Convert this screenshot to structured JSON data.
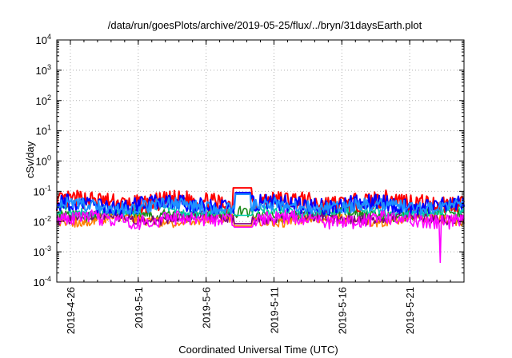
{
  "chart_data": {
    "type": "line",
    "title": "/data/run/goesPlots/archive/2019-05-25/flux/../bryn/31daysEarth.plot",
    "xlabel": "Coordinated Universal Time (UTC)",
    "ylabel": "cSv/day",
    "yscale": "log",
    "ylim": [
      0.0001,
      10000
    ],
    "y_ticks": [
      {
        "base": "10",
        "exp": "-4",
        "value": 0.0001
      },
      {
        "base": "10",
        "exp": "-3",
        "value": 0.001
      },
      {
        "base": "10",
        "exp": "-2",
        "value": 0.01
      },
      {
        "base": "10",
        "exp": "-1",
        "value": 0.1
      },
      {
        "base": "10",
        "exp": "0",
        "value": 1
      },
      {
        "base": "10",
        "exp": "1",
        "value": 10
      },
      {
        "base": "10",
        "exp": "2",
        "value": 100
      },
      {
        "base": "10",
        "exp": "3",
        "value": 1000
      },
      {
        "base": "10",
        "exp": "4",
        "value": 10000
      }
    ],
    "xlim": [
      "2019-04-25",
      "2019-05-25"
    ],
    "x_ticks": [
      "2019-4-26",
      "2019-5-1",
      "2019-5-6",
      "2019-5-11",
      "2019-5-16",
      "2019-5-21"
    ],
    "x_tick_dates": [
      "2019-04-26",
      "2019-05-01",
      "2019-05-06",
      "2019-05-11",
      "2019-05-16",
      "2019-05-21"
    ],
    "grid": true,
    "series": [
      {
        "color": "#ff0000",
        "baseline": 0.045,
        "spread": 0.55,
        "events": [
          {
            "start": "2019-05-08T00:00",
            "end": "2019-05-09T08:00",
            "value": 0.13
          }
        ]
      },
      {
        "color": "#0000ff",
        "baseline": 0.036,
        "spread": 0.5,
        "events": [
          {
            "start": "2019-05-08T04:00",
            "end": "2019-05-09T06:00",
            "value": 0.09
          }
        ]
      },
      {
        "color": "#00ccaa",
        "baseline": 0.022,
        "spread": 0.3,
        "events": [
          {
            "start": "2019-05-08T02:00",
            "end": "2019-05-09T08:00",
            "value": 0.016
          }
        ]
      },
      {
        "color": "#1a8a1a",
        "baseline": 0.017,
        "spread": 0.35
      },
      {
        "color": "#ff7f00",
        "baseline": 0.011,
        "spread": 0.3,
        "events": [
          {
            "start": "2019-05-08T02:00",
            "end": "2019-05-09T08:00",
            "value": 0.0072
          }
        ]
      },
      {
        "color": "#800080",
        "baseline": 0.013,
        "spread": 0.3,
        "events": [
          {
            "start": "2019-05-08T02:00",
            "end": "2019-05-09T08:00",
            "value": 0.0085
          }
        ]
      },
      {
        "color": "#ff00ff",
        "baseline": 0.0115,
        "spread": 0.45,
        "events": [
          {
            "start": "2019-05-08T02:00",
            "end": "2019-05-09T08:00",
            "value": 0.0065
          },
          {
            "start": "2019-05-23T05:00",
            "end": "2019-05-23T06:00",
            "value": 0.00045
          }
        ]
      },
      {
        "color": "#1e90ff",
        "baseline": 0.032,
        "spread": 0.4,
        "events": [
          {
            "start": "2019-05-08T04:00",
            "end": "2019-05-09T06:00",
            "value": 0.08
          }
        ]
      }
    ]
  }
}
